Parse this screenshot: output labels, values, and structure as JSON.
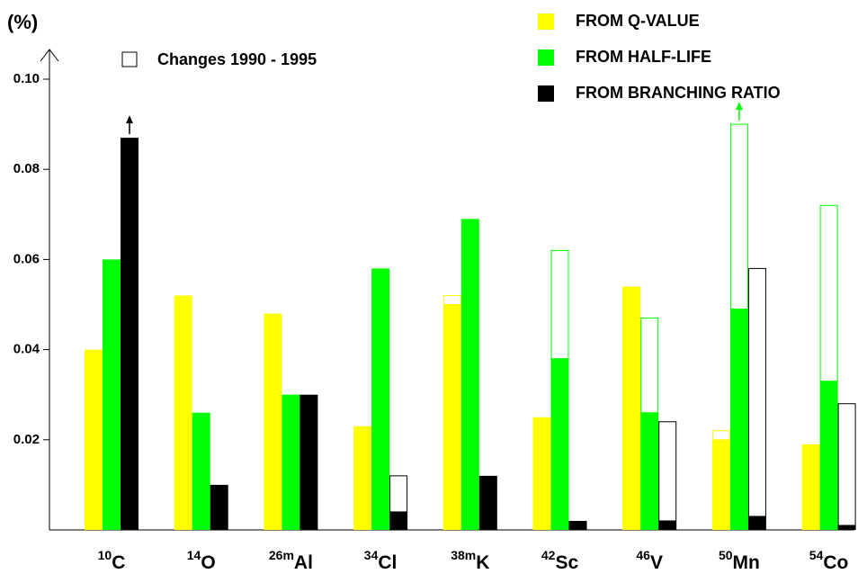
{
  "chart_data": {
    "type": "bar",
    "unit_label": "(%)",
    "changes_label": "Changes 1990 - 1995",
    "categories": [
      {
        "sup": "10",
        "base": "C"
      },
      {
        "sup": "14",
        "base": "O"
      },
      {
        "sup": "26m",
        "base": "Al"
      },
      {
        "sup": "34",
        "base": "Cl"
      },
      {
        "sup": "38m",
        "base": "K"
      },
      {
        "sup": "42",
        "base": "Sc"
      },
      {
        "sup": "46",
        "base": "V"
      },
      {
        "sup": "50",
        "base": "Mn"
      },
      {
        "sup": "54",
        "base": "Co"
      }
    ],
    "series": [
      {
        "name": "FROM Q-VALUE",
        "color": "#ffff00",
        "values": [
          0.04,
          0.052,
          0.048,
          0.023,
          0.05,
          0.025,
          0.054,
          0.02,
          0.019
        ],
        "previous": [
          null,
          null,
          null,
          null,
          0.052,
          null,
          null,
          0.022,
          null
        ],
        "off_scale": []
      },
      {
        "name": "FROM HALF-LIFE",
        "color": "#00ff00",
        "values": [
          0.06,
          0.026,
          0.03,
          0.058,
          0.069,
          0.038,
          0.026,
          0.049,
          0.033
        ],
        "previous": [
          null,
          null,
          null,
          null,
          null,
          0.062,
          0.047,
          0.09,
          0.072
        ],
        "off_scale": [
          7
        ]
      },
      {
        "name": "FROM BRANCHING RATIO",
        "color": "#000000",
        "values": [
          0.087,
          0.01,
          0.03,
          0.004,
          0.012,
          0.002,
          0.002,
          0.003,
          0.001
        ],
        "previous": [
          null,
          null,
          null,
          0.012,
          null,
          null,
          0.024,
          0.058,
          0.028
        ],
        "off_scale": [
          0
        ]
      }
    ],
    "ylim": [
      0,
      0.1
    ],
    "yticks": [
      0.02,
      0.04,
      0.06,
      0.08,
      {
        "value": 0.1,
        "label": "0.10"
      }
    ]
  }
}
